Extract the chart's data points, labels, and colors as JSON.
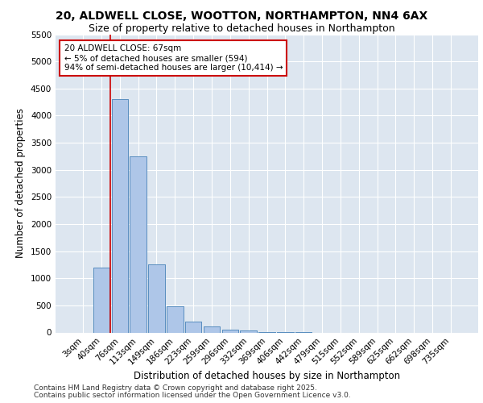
{
  "title_line1": "20, ALDWELL CLOSE, WOOTTON, NORTHAMPTON, NN4 6AX",
  "title_line2": "Size of property relative to detached houses in Northampton",
  "xlabel": "Distribution of detached houses by size in Northampton",
  "ylabel": "Number of detached properties",
  "categories": [
    "3sqm",
    "40sqm",
    "76sqm",
    "113sqm",
    "149sqm",
    "186sqm",
    "223sqm",
    "259sqm",
    "296sqm",
    "332sqm",
    "369sqm",
    "406sqm",
    "442sqm",
    "479sqm",
    "515sqm",
    "552sqm",
    "589sqm",
    "625sqm",
    "662sqm",
    "698sqm",
    "735sqm"
  ],
  "bar_values": [
    0,
    1200,
    4300,
    3250,
    1250,
    480,
    200,
    110,
    55,
    30,
    10,
    5,
    2,
    0,
    0,
    0,
    0,
    0,
    0,
    0,
    0
  ],
  "bar_color": "#aec6e8",
  "bar_edge_color": "#5a8fc0",
  "background_color": "#dde6f0",
  "ylim": [
    0,
    5500
  ],
  "yticks": [
    0,
    500,
    1000,
    1500,
    2000,
    2500,
    3000,
    3500,
    4000,
    4500,
    5000,
    5500
  ],
  "property_line_color": "#cc0000",
  "annotation_text": "20 ALDWELL CLOSE: 67sqm\n← 5% of detached houses are smaller (594)\n94% of semi-detached houses are larger (10,414) →",
  "annotation_box_color": "#cc0000",
  "footer_line1": "Contains HM Land Registry data © Crown copyright and database right 2025.",
  "footer_line2": "Contains public sector information licensed under the Open Government Licence v3.0.",
  "grid_color": "#ffffff",
  "title_fontsize": 10,
  "subtitle_fontsize": 9,
  "axis_label_fontsize": 8.5,
  "tick_fontsize": 7.5,
  "footer_fontsize": 6.5
}
